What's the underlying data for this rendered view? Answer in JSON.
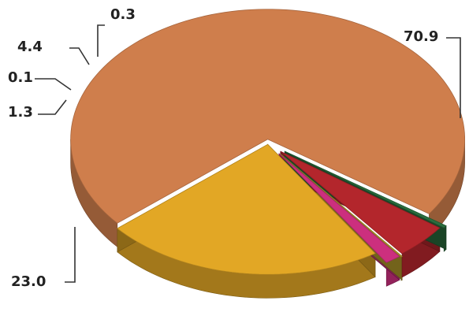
{
  "chart_data": {
    "type": "pie",
    "title": "",
    "values": [
      70.9,
      23.0,
      1.3,
      0.1,
      4.4,
      0.3
    ],
    "labels": [
      "70.9",
      "23.0",
      "1.3",
      "0.1",
      "4.4",
      "0.3"
    ],
    "colors": [
      "#cf7e4c",
      "#e2a725",
      "#cc2f7e",
      "#b9a02c",
      "#b3262c",
      "#2a6e3e"
    ],
    "style": "3d-exploded",
    "legend": "none"
  }
}
